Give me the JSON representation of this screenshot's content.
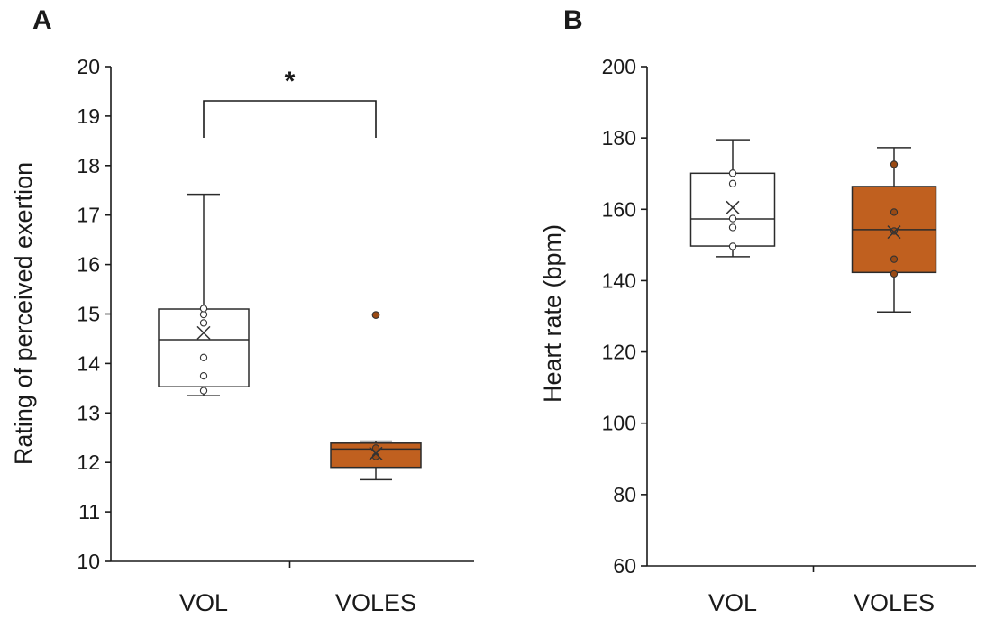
{
  "chart_data": [
    {
      "type": "box",
      "panel": "A",
      "ylabel": "Rating of perceived exertion",
      "ylim": [
        10,
        20
      ],
      "yticks": [
        10,
        11,
        12,
        13,
        14,
        15,
        16,
        17,
        18,
        19,
        20
      ],
      "categories": [
        "VOL",
        "VOLES"
      ],
      "series": [
        {
          "name": "VOL",
          "fill": "#ffffff",
          "whisker_low": 13.35,
          "q1": 13.53,
          "median": 14.48,
          "q3": 15.1,
          "whisker_high": 17.42,
          "mean": 14.62,
          "points": [
            13.45,
            13.75,
            14.12,
            14.82,
            14.99,
            15.11
          ],
          "outliers": []
        },
        {
          "name": "VOLES",
          "fill": "#c0601f",
          "whisker_low": 11.65,
          "q1": 11.9,
          "median": 12.27,
          "q3": 12.39,
          "whisker_high": 12.43,
          "mean": 12.18,
          "points": [
            12.12,
            12.29
          ],
          "outliers": [
            14.98
          ]
        }
      ],
      "significance": {
        "between": [
          "VOL",
          "VOLES"
        ],
        "label": "*"
      }
    },
    {
      "type": "box",
      "panel": "B",
      "ylabel": "Heart rate (bpm)",
      "ylim": [
        60,
        200
      ],
      "yticks": [
        60,
        80,
        100,
        120,
        140,
        160,
        180,
        200
      ],
      "categories": [
        "VOL",
        "VOLES"
      ],
      "series": [
        {
          "name": "VOL",
          "fill": "#ffffff",
          "whisker_low": 146.7,
          "q1": 149.7,
          "median": 157.3,
          "q3": 170.1,
          "whisker_high": 179.5,
          "mean": 160.5,
          "points": [
            149.6,
            154.9,
            157.4,
            167.2,
            170.1
          ],
          "outliers": []
        },
        {
          "name": "VOLES",
          "fill": "#c0601f",
          "whisker_low": 131.2,
          "q1": 142.3,
          "median": 154.3,
          "q3": 166.4,
          "whisker_high": 177.3,
          "mean": 153.6,
          "points": [
            141.9,
            146.0,
            153.9,
            159.2,
            172.6
          ],
          "outliers": []
        }
      ]
    }
  ],
  "colors": {
    "axis": "#1a1a1a",
    "box_outline": "#2b2b2b",
    "voles_fill": "#c0601f",
    "dot_voles": "#9a4a14"
  }
}
